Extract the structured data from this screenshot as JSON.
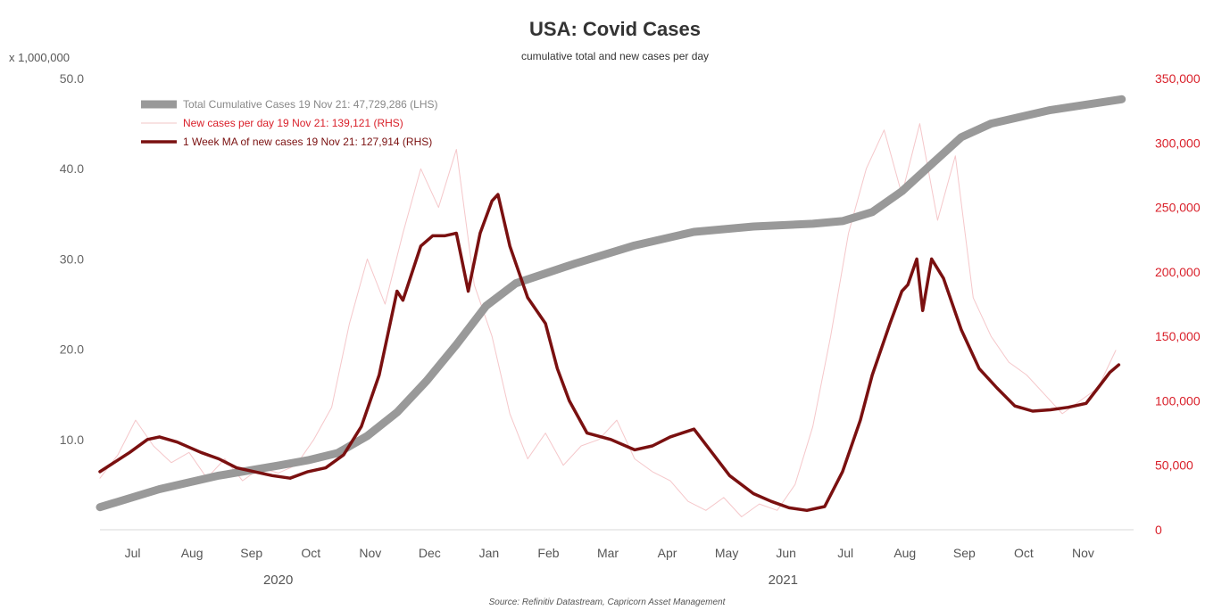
{
  "chart_data": {
    "type": "line",
    "title": "USA: Covid Cases",
    "subtitle": "cumulative total and new cases per day",
    "left_axis": {
      "unit_label": "x 1,000,000",
      "range": [
        0,
        50
      ],
      "ticks": [
        10,
        20,
        30,
        40,
        50
      ],
      "tick_labels": [
        "10.0",
        "20.0",
        "30.0",
        "40.0",
        "50.0"
      ]
    },
    "right_axis": {
      "range": [
        0,
        350000
      ],
      "ticks": [
        0,
        50000,
        100000,
        150000,
        200000,
        250000,
        300000,
        350000
      ],
      "tick_labels": [
        "0",
        "50,000",
        "100,000",
        "150,000",
        "200,000",
        "250,000",
        "300,000",
        "350,000"
      ],
      "color": "#d9202a"
    },
    "x_axis": {
      "range": [
        0,
        17.4
      ],
      "month_labels": [
        "Jul",
        "Aug",
        "Sep",
        "Oct",
        "Nov",
        "Dec",
        "Jan",
        "Feb",
        "Mar",
        "Apr",
        "May",
        "Jun",
        "Jul",
        "Aug",
        "Sep",
        "Oct",
        "Nov"
      ],
      "year_labels": [
        {
          "label": "2020",
          "x": 3.0
        },
        {
          "label": "2021",
          "x": 11.5
        }
      ]
    },
    "grid": false,
    "legend_position": "top-left",
    "legend": [
      {
        "label": "Total Cumulative Cases 19 Nov 21: 47,729,286 (LHS)",
        "color": "#999999"
      },
      {
        "label": "New cases per day 19 Nov 21: 139,121 (RHS)",
        "color": "#d9202a"
      },
      {
        "label": "1 Week MA of new cases 19 Nov 21: 127,914 (RHS)",
        "color": "#7a1010"
      }
    ],
    "series": [
      {
        "name": "Total Cumulative Cases 19 Nov 21: 47,729,286 (LHS)",
        "axis": "left",
        "color": "#999999",
        "x": [
          0,
          1,
          2,
          3,
          3.5,
          4,
          4.5,
          5,
          5.5,
          6,
          6.5,
          7,
          8,
          9,
          10,
          11,
          12,
          12.5,
          13,
          13.5,
          14,
          14.5,
          15,
          16,
          17.2
        ],
        "y": [
          2.5,
          4.5,
          6.0,
          7.1,
          7.7,
          8.5,
          10.4,
          13.0,
          16.5,
          20.5,
          24.8,
          27.3,
          29.5,
          31.5,
          33.0,
          33.6,
          33.9,
          34.2,
          35.2,
          37.5,
          40.5,
          43.5,
          45.0,
          46.5,
          47.7
        ]
      },
      {
        "name": "New cases per day 19 Nov 21: 139,121 (RHS)",
        "axis": "right",
        "color": "#d9202a",
        "x": [
          0,
          0.3,
          0.6,
          0.9,
          1.2,
          1.5,
          1.8,
          2.1,
          2.4,
          2.7,
          3.0,
          3.3,
          3.6,
          3.9,
          4.2,
          4.5,
          4.8,
          5.1,
          5.4,
          5.7,
          6.0,
          6.3,
          6.6,
          6.9,
          7.2,
          7.5,
          7.8,
          8.1,
          8.4,
          8.7,
          9.0,
          9.3,
          9.6,
          9.9,
          10.2,
          10.5,
          10.8,
          11.1,
          11.4,
          11.7,
          12.0,
          12.3,
          12.6,
          12.9,
          13.2,
          13.5,
          13.8,
          14.1,
          14.4,
          14.7,
          15.0,
          15.3,
          15.6,
          15.9,
          16.2,
          16.5,
          16.8,
          17.1
        ],
        "y": [
          40000,
          58000,
          85000,
          65000,
          52000,
          60000,
          40000,
          55000,
          38000,
          48000,
          44000,
          50000,
          70000,
          95000,
          160000,
          210000,
          175000,
          230000,
          280000,
          250000,
          295000,
          190000,
          150000,
          90000,
          55000,
          75000,
          50000,
          65000,
          70000,
          85000,
          55000,
          45000,
          38000,
          22000,
          15000,
          25000,
          10000,
          20000,
          15000,
          35000,
          80000,
          150000,
          230000,
          280000,
          310000,
          260000,
          315000,
          240000,
          290000,
          180000,
          150000,
          130000,
          120000,
          105000,
          90000,
          100000,
          110000,
          139121
        ]
      },
      {
        "name": "1 Week MA of new cases 19 Nov 21: 127,914 (RHS)",
        "axis": "right",
        "color": "#7a1010",
        "x": [
          0,
          0.5,
          0.8,
          1.0,
          1.3,
          1.7,
          2.0,
          2.3,
          2.6,
          2.9,
          3.2,
          3.5,
          3.8,
          4.1,
          4.4,
          4.7,
          5.0,
          5.1,
          5.4,
          5.6,
          5.8,
          6.0,
          6.2,
          6.4,
          6.6,
          6.7,
          6.9,
          7.2,
          7.5,
          7.7,
          7.9,
          8.2,
          8.6,
          9.0,
          9.3,
          9.6,
          10.0,
          10.3,
          10.6,
          11.0,
          11.3,
          11.6,
          11.9,
          12.2,
          12.5,
          12.8,
          13.0,
          13.3,
          13.5,
          13.6,
          13.75,
          13.85,
          14.0,
          14.2,
          14.5,
          14.8,
          15.1,
          15.4,
          15.7,
          16.0,
          16.3,
          16.6,
          16.8,
          17.0,
          17.15
        ],
        "y": [
          45000,
          60000,
          70000,
          72000,
          68000,
          60000,
          55000,
          48000,
          45000,
          42000,
          40000,
          45000,
          48000,
          58000,
          80000,
          120000,
          185000,
          178000,
          220000,
          228000,
          228000,
          230000,
          185000,
          230000,
          255000,
          260000,
          220000,
          180000,
          160000,
          125000,
          100000,
          75000,
          70000,
          62000,
          65000,
          72000,
          78000,
          60000,
          42000,
          28000,
          22000,
          17000,
          15000,
          18000,
          45000,
          85000,
          120000,
          160000,
          185000,
          190000,
          210000,
          170000,
          210000,
          195000,
          155000,
          125000,
          110000,
          96000,
          92000,
          93000,
          95000,
          98000,
          110000,
          122000,
          127914
        ]
      }
    ],
    "source": "Source: Refinitiv Datastream, Capricorn Asset Management"
  }
}
